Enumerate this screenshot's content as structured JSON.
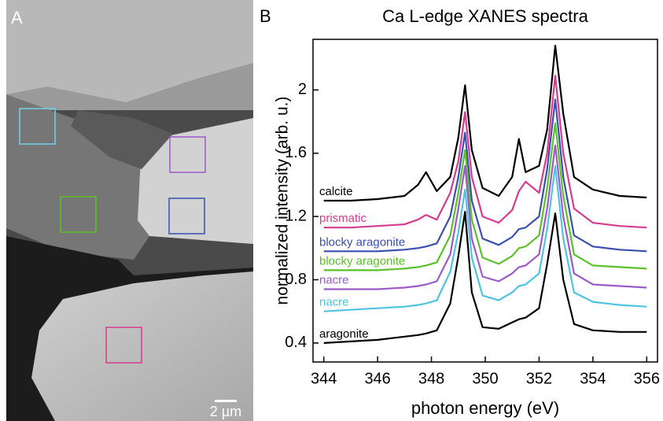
{
  "panel_a": {
    "label": "A",
    "scale_bar": "2 µm"
  },
  "chart_data": {
    "type": "line",
    "panel_label": "B",
    "title": "Ca L-edge XANES spectra",
    "x_label": "photon energy (eV)",
    "y_label": "normalized intensity (arb. u.)",
    "x": [
      344,
      345,
      346,
      347,
      347.5,
      347.8,
      348.2,
      348.7,
      349.0,
      349.25,
      349.5,
      349.9,
      350.5,
      351.0,
      351.25,
      351.5,
      352.0,
      352.3,
      352.6,
      352.9,
      353.3,
      354,
      355,
      356
    ],
    "series": [
      {
        "name": "calcite",
        "color": "#000000",
        "values": [
          1.3,
          1.3,
          1.31,
          1.33,
          1.4,
          1.48,
          1.36,
          1.45,
          1.7,
          2.03,
          1.62,
          1.38,
          1.33,
          1.45,
          1.69,
          1.48,
          1.52,
          1.75,
          2.28,
          1.85,
          1.45,
          1.37,
          1.33,
          1.32
        ]
      },
      {
        "name": "prismatic",
        "color": "#d63c8e",
        "values": [
          1.13,
          1.13,
          1.14,
          1.15,
          1.18,
          1.21,
          1.18,
          1.35,
          1.55,
          1.86,
          1.45,
          1.2,
          1.16,
          1.24,
          1.36,
          1.42,
          1.35,
          1.6,
          2.09,
          1.6,
          1.25,
          1.16,
          1.14,
          1.13
        ]
      },
      {
        "name": "blocky aragonite",
        "color": "#3a4fb0",
        "values": [
          0.98,
          0.98,
          0.98,
          0.99,
          1.0,
          1.01,
          1.03,
          1.2,
          1.45,
          1.73,
          1.3,
          1.06,
          1.02,
          1.07,
          1.12,
          1.13,
          1.2,
          1.5,
          1.94,
          1.45,
          1.08,
          1.01,
          0.99,
          0.98
        ]
      },
      {
        "name": "blocky aragonite",
        "color": "#5cc02a",
        "values": [
          0.86,
          0.86,
          0.86,
          0.87,
          0.88,
          0.89,
          0.91,
          1.08,
          1.35,
          1.62,
          1.18,
          0.94,
          0.9,
          0.95,
          1.0,
          1.01,
          1.08,
          1.38,
          1.79,
          1.33,
          0.96,
          0.89,
          0.88,
          0.87
        ]
      },
      {
        "name": "nacre",
        "color": "#9c5bc9",
        "values": [
          0.74,
          0.74,
          0.74,
          0.75,
          0.76,
          0.77,
          0.79,
          0.96,
          1.25,
          1.52,
          1.06,
          0.82,
          0.79,
          0.84,
          0.88,
          0.89,
          0.96,
          1.25,
          1.65,
          1.2,
          0.84,
          0.77,
          0.76,
          0.75
        ]
      },
      {
        "name": "nacre",
        "color": "#4fc3e0",
        "values": [
          0.6,
          0.61,
          0.62,
          0.63,
          0.64,
          0.65,
          0.67,
          0.85,
          1.1,
          1.37,
          0.94,
          0.7,
          0.67,
          0.72,
          0.76,
          0.77,
          0.84,
          1.12,
          1.52,
          1.06,
          0.72,
          0.66,
          0.64,
          0.63
        ]
      },
      {
        "name": "aragonite",
        "color": "#000000",
        "values": [
          0.4,
          0.41,
          0.42,
          0.44,
          0.45,
          0.46,
          0.48,
          0.65,
          0.95,
          1.23,
          0.72,
          0.5,
          0.49,
          0.53,
          0.55,
          0.56,
          0.62,
          0.9,
          1.22,
          0.8,
          0.52,
          0.48,
          0.47,
          0.47
        ]
      }
    ],
    "xlim": [
      343.6,
      356.4
    ],
    "xticks": [
      344,
      346,
      348,
      350,
      352,
      354,
      356
    ],
    "ylim": [
      0.28,
      2.32
    ],
    "yticks": [
      0.4,
      0.8,
      1.2,
      1.6,
      2
    ],
    "grid": false
  }
}
